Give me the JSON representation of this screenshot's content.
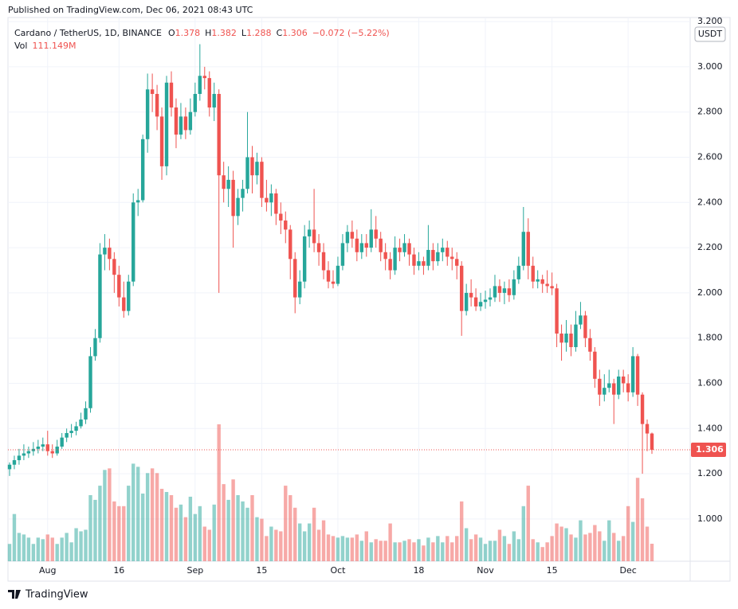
{
  "published": "Published on TradingView.com, Dec 06, 2021 08:43 UTC",
  "footer": "TradingView",
  "chart_data": {
    "type": "candlestick",
    "title": "Cardano / TetherUS, 1D, BINANCE",
    "ohlc_labels": [
      "O",
      "H",
      "L",
      "C"
    ],
    "change_label": "−0.072 (−5.22%)",
    "volume_title": "Vol",
    "volume_label": "111.149M",
    "currency": "USDT",
    "up_color": "#26a69a",
    "down_color": "#ef5350",
    "grid": true,
    "ylim": [
      0.813,
      3.218
    ],
    "yticks": [
      {
        "value": 1.0,
        "label": "1.000"
      },
      {
        "value": 1.2,
        "label": "1.200"
      },
      {
        "value": 1.4,
        "label": "1.400"
      },
      {
        "value": 1.6,
        "label": "1.600"
      },
      {
        "value": 1.8,
        "label": "1.800"
      },
      {
        "value": 2.0,
        "label": "2.000"
      },
      {
        "value": 2.2,
        "label": "2.200"
      },
      {
        "value": 2.4,
        "label": "2.400"
      },
      {
        "value": 2.6,
        "label": "2.600"
      },
      {
        "value": 2.8,
        "label": "2.800"
      },
      {
        "value": 3.0,
        "label": "3.000"
      },
      {
        "value": 3.2,
        "label": "3.200"
      }
    ],
    "categories": [
      null,
      null,
      null,
      null,
      null,
      null,
      null,
      null,
      "Aug",
      null,
      null,
      null,
      null,
      null,
      null,
      null,
      null,
      null,
      null,
      null,
      null,
      null,
      null,
      "16",
      null,
      null,
      null,
      null,
      null,
      null,
      null,
      null,
      null,
      null,
      null,
      null,
      null,
      null,
      null,
      "Sep",
      null,
      null,
      null,
      null,
      null,
      null,
      null,
      null,
      null,
      null,
      null,
      null,
      null,
      "15",
      null,
      null,
      null,
      null,
      null,
      null,
      null,
      null,
      null,
      null,
      null,
      null,
      null,
      null,
      null,
      "Oct",
      null,
      null,
      null,
      null,
      null,
      null,
      null,
      null,
      null,
      null,
      null,
      null,
      null,
      null,
      null,
      null,
      "18",
      null,
      null,
      null,
      null,
      null,
      null,
      null,
      null,
      null,
      null,
      null,
      null,
      null,
      "Nov",
      null,
      null,
      null,
      null,
      null,
      null,
      null,
      null,
      null,
      null,
      null,
      null,
      null,
      "15",
      null,
      null,
      null,
      null,
      null,
      null,
      null,
      null,
      null,
      null,
      null,
      null,
      null,
      null,
      null,
      "Dec",
      null,
      null,
      null,
      null,
      null
    ],
    "ohlc": [
      [
        1.22,
        1.25,
        1.19,
        1.24
      ],
      [
        1.24,
        1.28,
        1.22,
        1.26
      ],
      [
        1.26,
        1.31,
        1.24,
        1.28
      ],
      [
        1.28,
        1.33,
        1.26,
        1.29
      ],
      [
        1.29,
        1.32,
        1.27,
        1.3
      ],
      [
        1.3,
        1.34,
        1.28,
        1.31
      ],
      [
        1.31,
        1.35,
        1.29,
        1.32
      ],
      [
        1.32,
        1.36,
        1.3,
        1.33
      ],
      [
        1.33,
        1.39,
        1.28,
        1.3
      ],
      [
        1.3,
        1.33,
        1.27,
        1.29
      ],
      [
        1.29,
        1.35,
        1.28,
        1.32
      ],
      [
        1.32,
        1.38,
        1.31,
        1.36
      ],
      [
        1.36,
        1.4,
        1.34,
        1.38
      ],
      [
        1.38,
        1.42,
        1.36,
        1.39
      ],
      [
        1.39,
        1.43,
        1.37,
        1.41
      ],
      [
        1.41,
        1.47,
        1.4,
        1.44
      ],
      [
        1.44,
        1.52,
        1.42,
        1.49
      ],
      [
        1.49,
        1.76,
        1.47,
        1.72
      ],
      [
        1.72,
        1.84,
        1.7,
        1.8
      ],
      [
        1.8,
        2.22,
        1.78,
        2.17
      ],
      [
        2.17,
        2.26,
        2.1,
        2.2
      ],
      [
        2.2,
        2.24,
        2.1,
        2.15
      ],
      [
        2.15,
        2.18,
        2.0,
        2.08
      ],
      [
        2.08,
        2.12,
        1.94,
        1.98
      ],
      [
        1.98,
        2.05,
        1.89,
        1.92
      ],
      [
        1.92,
        2.08,
        1.9,
        2.05
      ],
      [
        2.05,
        2.44,
        2.03,
        2.4
      ],
      [
        2.4,
        2.46,
        2.34,
        2.41
      ],
      [
        2.41,
        2.7,
        2.4,
        2.68
      ],
      [
        2.68,
        2.97,
        2.62,
        2.9
      ],
      [
        2.9,
        2.97,
        2.8,
        2.88
      ],
      [
        2.88,
        2.92,
        2.72,
        2.78
      ],
      [
        2.78,
        2.82,
        2.5,
        2.56
      ],
      [
        2.56,
        2.96,
        2.52,
        2.93
      ],
      [
        2.93,
        2.98,
        2.78,
        2.82
      ],
      [
        2.82,
        2.86,
        2.64,
        2.7
      ],
      [
        2.7,
        2.84,
        2.68,
        2.78
      ],
      [
        2.78,
        2.82,
        2.68,
        2.72
      ],
      [
        2.72,
        2.86,
        2.7,
        2.8
      ],
      [
        2.8,
        2.93,
        2.78,
        2.88
      ],
      [
        2.88,
        3.1,
        2.85,
        2.96
      ],
      [
        2.96,
        3.0,
        2.9,
        2.95
      ],
      [
        2.95,
        2.98,
        2.78,
        2.82
      ],
      [
        2.82,
        2.93,
        2.76,
        2.88
      ],
      [
        2.88,
        2.9,
        2.0,
        2.52
      ],
      [
        2.52,
        2.58,
        2.4,
        2.46
      ],
      [
        2.46,
        2.56,
        2.38,
        2.5
      ],
      [
        2.5,
        2.54,
        2.2,
        2.34
      ],
      [
        2.34,
        2.46,
        2.3,
        2.42
      ],
      [
        2.42,
        2.5,
        2.36,
        2.46
      ],
      [
        2.46,
        2.8,
        2.44,
        2.6
      ],
      [
        2.6,
        2.65,
        2.44,
        2.52
      ],
      [
        2.52,
        2.62,
        2.48,
        2.58
      ],
      [
        2.58,
        2.6,
        2.38,
        2.42
      ],
      [
        2.42,
        2.5,
        2.36,
        2.4
      ],
      [
        2.4,
        2.48,
        2.34,
        2.44
      ],
      [
        2.44,
        2.46,
        2.3,
        2.35
      ],
      [
        2.35,
        2.4,
        2.26,
        2.32
      ],
      [
        2.32,
        2.36,
        2.22,
        2.28
      ],
      [
        2.28,
        2.3,
        2.06,
        2.15
      ],
      [
        2.15,
        2.18,
        1.91,
        1.98
      ],
      [
        1.98,
        2.1,
        1.95,
        2.05
      ],
      [
        2.05,
        2.3,
        2.02,
        2.25
      ],
      [
        2.25,
        2.32,
        2.2,
        2.28
      ],
      [
        2.28,
        2.46,
        2.18,
        2.22
      ],
      [
        2.22,
        2.26,
        2.12,
        2.18
      ],
      [
        2.18,
        2.22,
        2.06,
        2.1
      ],
      [
        2.1,
        2.14,
        2.02,
        2.05
      ],
      [
        2.05,
        2.1,
        2.02,
        2.04
      ],
      [
        2.04,
        2.16,
        2.03,
        2.12
      ],
      [
        2.12,
        2.26,
        2.1,
        2.22
      ],
      [
        2.22,
        2.3,
        2.18,
        2.27
      ],
      [
        2.27,
        2.32,
        2.2,
        2.24
      ],
      [
        2.24,
        2.28,
        2.14,
        2.18
      ],
      [
        2.18,
        2.26,
        2.15,
        2.22
      ],
      [
        2.22,
        2.26,
        2.16,
        2.2
      ],
      [
        2.2,
        2.37,
        2.18,
        2.28
      ],
      [
        2.28,
        2.34,
        2.2,
        2.24
      ],
      [
        2.24,
        2.27,
        2.14,
        2.18
      ],
      [
        2.18,
        2.22,
        2.1,
        2.15
      ],
      [
        2.15,
        2.18,
        2.06,
        2.1
      ],
      [
        2.1,
        2.25,
        2.08,
        2.2
      ],
      [
        2.2,
        2.24,
        2.14,
        2.18
      ],
      [
        2.18,
        2.26,
        2.16,
        2.22
      ],
      [
        2.22,
        2.24,
        2.12,
        2.17
      ],
      [
        2.17,
        2.2,
        2.08,
        2.12
      ],
      [
        2.12,
        2.18,
        2.1,
        2.14
      ],
      [
        2.14,
        2.16,
        2.08,
        2.12
      ],
      [
        2.12,
        2.3,
        2.1,
        2.19
      ],
      [
        2.19,
        2.22,
        2.1,
        2.14
      ],
      [
        2.14,
        2.22,
        2.12,
        2.18
      ],
      [
        2.18,
        2.24,
        2.14,
        2.2
      ],
      [
        2.2,
        2.23,
        2.12,
        2.16
      ],
      [
        2.16,
        2.2,
        2.1,
        2.15
      ],
      [
        2.15,
        2.18,
        2.06,
        2.12
      ],
      [
        2.12,
        2.14,
        1.81,
        1.92
      ],
      [
        1.92,
        2.04,
        1.9,
        2.0
      ],
      [
        2.0,
        2.06,
        1.94,
        1.98
      ],
      [
        1.98,
        2.02,
        1.92,
        1.94
      ],
      [
        1.94,
        2.0,
        1.92,
        1.96
      ],
      [
        1.96,
        2.01,
        1.93,
        1.97
      ],
      [
        1.97,
        2.02,
        1.94,
        1.98
      ],
      [
        1.98,
        2.08,
        1.96,
        2.03
      ],
      [
        2.03,
        2.06,
        1.96,
        2.0
      ],
      [
        2.0,
        2.05,
        1.95,
        2.02
      ],
      [
        2.02,
        2.06,
        1.96,
        1.99
      ],
      [
        1.99,
        2.1,
        1.97,
        2.06
      ],
      [
        2.06,
        2.16,
        2.04,
        2.12
      ],
      [
        2.12,
        2.38,
        2.1,
        2.27
      ],
      [
        2.27,
        2.33,
        2.06,
        2.12
      ],
      [
        2.12,
        2.16,
        2.02,
        2.05
      ],
      [
        2.05,
        2.1,
        2.02,
        2.06
      ],
      [
        2.06,
        2.08,
        2.0,
        2.04
      ],
      [
        2.04,
        2.1,
        2.0,
        2.03
      ],
      [
        2.03,
        2.09,
        1.99,
        2.02
      ],
      [
        2.02,
        2.04,
        1.76,
        1.82
      ],
      [
        1.82,
        1.86,
        1.7,
        1.78
      ],
      [
        1.78,
        1.88,
        1.74,
        1.82
      ],
      [
        1.82,
        1.86,
        1.72,
        1.76
      ],
      [
        1.76,
        1.92,
        1.74,
        1.86
      ],
      [
        1.86,
        1.96,
        1.84,
        1.9
      ],
      [
        1.9,
        1.92,
        1.76,
        1.8
      ],
      [
        1.8,
        1.84,
        1.7,
        1.74
      ],
      [
        1.74,
        1.76,
        1.58,
        1.62
      ],
      [
        1.62,
        1.66,
        1.5,
        1.55
      ],
      [
        1.55,
        1.64,
        1.52,
        1.58
      ],
      [
        1.58,
        1.66,
        1.56,
        1.6
      ],
      [
        1.6,
        1.62,
        1.42,
        1.55
      ],
      [
        1.55,
        1.66,
        1.53,
        1.63
      ],
      [
        1.63,
        1.66,
        1.56,
        1.6
      ],
      [
        1.6,
        1.64,
        1.52,
        1.56
      ],
      [
        1.56,
        1.76,
        1.54,
        1.72
      ],
      [
        1.72,
        1.73,
        1.5,
        1.55
      ],
      [
        1.55,
        1.56,
        1.2,
        1.42
      ],
      [
        1.42,
        1.44,
        1.3,
        1.378
      ],
      [
        1.378,
        1.382,
        1.288,
        1.306
      ]
    ],
    "volume": [
      110,
      300,
      180,
      170,
      150,
      110,
      150,
      140,
      170,
      150,
      110,
      150,
      180,
      120,
      210,
      190,
      200,
      420,
      390,
      480,
      580,
      590,
      380,
      350,
      350,
      480,
      620,
      600,
      430,
      560,
      590,
      560,
      460,
      440,
      420,
      340,
      360,
      280,
      410,
      300,
      350,
      220,
      200,
      360,
      870,
      490,
      390,
      520,
      420,
      380,
      340,
      420,
      280,
      270,
      160,
      220,
      200,
      190,
      480,
      420,
      340,
      240,
      190,
      240,
      340,
      200,
      260,
      170,
      160,
      150,
      160,
      150,
      150,
      170,
      130,
      190,
      120,
      140,
      130,
      130,
      240,
      120,
      120,
      130,
      140,
      120,
      140,
      100,
      150,
      120,
      160,
      120,
      160,
      120,
      160,
      380,
      210,
      140,
      170,
      150,
      110,
      130,
      130,
      200,
      160,
      110,
      190,
      140,
      350,
      480,
      140,
      120,
      90,
      120,
      160,
      240,
      220,
      210,
      170,
      150,
      260,
      170,
      180,
      230,
      190,
      130,
      260,
      180,
      130,
      160,
      350,
      250,
      530,
      400,
      220,
      111.149
    ]
  }
}
